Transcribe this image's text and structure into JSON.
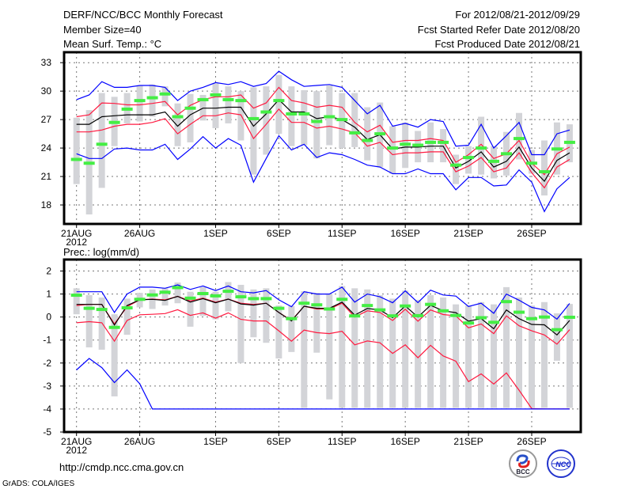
{
  "header": {
    "title": "DERF/NCC/BCC Monthly Forecast",
    "member_size": "Member Size=40",
    "variable": "Mean Surf. Temp.: °C",
    "period": "For 2012/08/21-2012/09/29",
    "refer_date": "Fcst Started Refer Date 2012/08/20",
    "produced_date": "Fcst Produced Date 2012/08/21"
  },
  "footer": {
    "url": "http://cmdp.ncc.cma.gov.cn",
    "credit": "GrADS: COLA/IGES",
    "logos": [
      "BCC",
      "NCC"
    ]
  },
  "colors": {
    "extreme": "#0000ff",
    "spread": "#ff1a40",
    "mean": "#000000",
    "green": "#44ee44",
    "bar": "#d3d4d8"
  },
  "chart_data": [
    {
      "type": "line",
      "title": "Mean Surf. Temp.: °C",
      "ylim": [
        16.0,
        34.1
      ],
      "yticks": [
        18,
        21,
        24,
        27,
        30,
        33
      ],
      "xtick_labels": [
        "21AUG",
        "26AUG",
        "1SEP",
        "6SEP",
        "11SEP",
        "16SEP",
        "21SEP",
        "26SEP"
      ],
      "xtick_index": [
        0,
        5,
        11,
        16,
        21,
        26,
        31,
        36
      ],
      "year_label": "2012",
      "grid": true,
      "n_days": 40,
      "series": [
        {
          "name": "max",
          "color": "#0000ff",
          "values": [
            29.1,
            29.6,
            31.0,
            30.4,
            30.4,
            30.6,
            30.6,
            30.4,
            29.0,
            30.0,
            30.4,
            30.9,
            30.7,
            31.0,
            30.5,
            30.8,
            32.1,
            31.2,
            30.5,
            30.6,
            30.7,
            30.4,
            29.0,
            27.6,
            28.5,
            26.3,
            26.6,
            26.2,
            27.0,
            26.8,
            24.2,
            24.3,
            26.5,
            24.0,
            25.3,
            26.7,
            23.3,
            23.3,
            25.5,
            25.9
          ]
        },
        {
          "name": "upper",
          "color": "#ff1a40",
          "values": [
            27.3,
            27.5,
            28.75,
            28.7,
            28.55,
            28.55,
            28.7,
            28.9,
            27.5,
            28.5,
            29.1,
            29.4,
            29.4,
            29.6,
            28.2,
            28.75,
            30.4,
            29.0,
            28.75,
            28.3,
            28.5,
            28.3,
            26.7,
            25.7,
            26.4,
            24.6,
            24.8,
            24.8,
            25.0,
            24.8,
            22.5,
            23.3,
            24.4,
            22.9,
            23.4,
            24.8,
            22.4,
            21.2,
            23.4,
            24.1
          ]
        },
        {
          "name": "mean",
          "color": "#000000",
          "values": [
            26.5,
            26.5,
            27.3,
            27.4,
            27.5,
            27.5,
            27.5,
            27.8,
            26.3,
            27.5,
            28.2,
            28.2,
            28.3,
            28.3,
            26.3,
            27.6,
            29.1,
            27.8,
            27.8,
            27.1,
            27.3,
            27.0,
            26.2,
            24.9,
            25.4,
            23.9,
            24.1,
            24.1,
            24.2,
            24.2,
            21.9,
            22.6,
            23.6,
            22.0,
            22.6,
            24.1,
            21.9,
            20.5,
            22.7,
            23.5
          ]
        },
        {
          "name": "lower",
          "color": "#ff1a40",
          "values": [
            25.7,
            25.7,
            25.9,
            26.3,
            26.5,
            26.5,
            26.7,
            27.1,
            25.5,
            26.5,
            27.4,
            27.4,
            27.7,
            27.5,
            25.0,
            26.5,
            28.1,
            26.7,
            26.7,
            26.1,
            26.3,
            26.0,
            25.6,
            24.2,
            24.6,
            23.3,
            23.5,
            23.5,
            23.6,
            23.6,
            21.5,
            22.1,
            23.0,
            21.5,
            21.9,
            23.5,
            21.4,
            19.8,
            22.0,
            22.8
          ]
        },
        {
          "name": "min",
          "color": "#0000ff",
          "values": [
            23.4,
            22.9,
            22.9,
            23.9,
            24.0,
            23.8,
            23.8,
            24.4,
            22.8,
            23.9,
            25.2,
            24.0,
            25.0,
            24.3,
            20.4,
            22.9,
            25.3,
            23.8,
            24.4,
            23.0,
            23.5,
            23.3,
            22.8,
            22.2,
            22.0,
            21.3,
            21.3,
            21.8,
            21.3,
            21.3,
            19.6,
            20.9,
            20.9,
            20.0,
            20.1,
            21.7,
            20.4,
            17.3,
            19.7,
            20.9
          ]
        }
      ],
      "markers": [
        22.8,
        22.4,
        24.4,
        26.7,
        28.1,
        29.0,
        29.3,
        29.7,
        27.3,
        28.2,
        29.1,
        29.6,
        29.1,
        29.0,
        27.1,
        27.8,
        29.0,
        27.6,
        27.6,
        26.8,
        27.3,
        27.0,
        25.6,
        24.8,
        25.5,
        24.0,
        24.4,
        24.3,
        24.6,
        24.6,
        22.2,
        23.0,
        24.0,
        22.6,
        23.4,
        25.0,
        22.4,
        21.5,
        23.9,
        24.6
      ],
      "bars_low": [
        20.2,
        17.0,
        19.8,
        24.2,
        26.6,
        26.8,
        27.3,
        28.4,
        24.2,
        24.6,
        26.9,
        26.1,
        26.6,
        24.8,
        21.2,
        23.3,
        25.5,
        24.2,
        24.3,
        22.9,
        24.3,
        24.0,
        24.1,
        22.7,
        22.0,
        21.3,
        21.9,
        22.5,
        22.5,
        22.5,
        20.2,
        21.3,
        21.2,
        20.8,
        21.1,
        22.8,
        21.3,
        19.0,
        21.2,
        22.5
      ],
      "bars_high": [
        27.2,
        28.0,
        29.8,
        29.4,
        29.8,
        30.6,
        30.7,
        30.5,
        28.7,
        29.7,
        29.6,
        30.8,
        30.5,
        30.0,
        30.4,
        30.5,
        31.7,
        30.5,
        30.1,
        30.0,
        30.6,
        29.8,
        29.8,
        28.3,
        28.8,
        26.3,
        26.7,
        25.8,
        26.7,
        26.0,
        23.3,
        24.2,
        27.3,
        24.2,
        25.7,
        27.7,
        23.8,
        24.8,
        26.7,
        26.5
      ]
    },
    {
      "type": "line",
      "title": "Prec.: log(mm/d)",
      "ylim": [
        -5,
        2.5
      ],
      "yticks": [
        -5,
        -4,
        -3,
        -2,
        -1,
        0,
        1,
        2
      ],
      "xtick_labels": [
        "21AUG",
        "26AUG",
        "1SEP",
        "6SEP",
        "11SEP",
        "16SEP",
        "21SEP",
        "26SEP"
      ],
      "xtick_index": [
        0,
        5,
        11,
        16,
        21,
        26,
        31,
        36
      ],
      "year_label": "2012",
      "grid": true,
      "n_days": 40,
      "series": [
        {
          "name": "max",
          "color": "#0000ff",
          "values": [
            1.1,
            1.1,
            1.1,
            0.2,
            1.0,
            1.3,
            1.3,
            1.25,
            1.4,
            1.2,
            1.35,
            1.15,
            1.35,
            1.1,
            1.05,
            1.15,
            0.75,
            0.45,
            1.1,
            1.0,
            1.0,
            1.3,
            0.65,
            1.0,
            0.88,
            0.62,
            1.14,
            0.63,
            1.17,
            0.96,
            0.91,
            0.46,
            0.6,
            0.16,
            1.0,
            0.73,
            0.42,
            0.31,
            -0.09,
            0.59
          ]
        },
        {
          "name": "upper",
          "color": "#ff1a40",
          "values": [
            0.5,
            0.55,
            0.55,
            -0.3,
            0.45,
            0.75,
            0.78,
            0.75,
            0.9,
            0.7,
            0.82,
            0.65,
            0.78,
            0.6,
            0.55,
            0.6,
            0.2,
            -0.15,
            0.47,
            0.35,
            0.35,
            0.6,
            0.0,
            0.27,
            0.2,
            -0.15,
            0.34,
            -0.18,
            0.31,
            0.11,
            0.05,
            -0.47,
            -0.3,
            -0.72,
            0.05,
            -0.38,
            -0.6,
            -0.78,
            -1.18,
            -0.55
          ]
        },
        {
          "name": "mean",
          "color": "#000000",
          "values": [
            0.55,
            0.55,
            0.55,
            -0.35,
            0.5,
            0.75,
            0.77,
            0.72,
            0.9,
            0.65,
            0.8,
            0.62,
            0.78,
            0.57,
            0.52,
            0.6,
            0.2,
            -0.17,
            0.47,
            0.38,
            0.38,
            0.65,
            0.08,
            0.37,
            0.31,
            -0.03,
            0.48,
            0.0,
            0.51,
            0.27,
            0.19,
            -0.18,
            -0.07,
            -0.51,
            0.31,
            -0.07,
            -0.32,
            -0.34,
            -0.78,
            -0.15
          ]
        },
        {
          "name": "lower",
          "color": "#ff1a40",
          "values": [
            -0.25,
            -0.2,
            -0.25,
            -1.05,
            -0.15,
            0.1,
            0.12,
            0.15,
            0.32,
            0.07,
            0.18,
            -0.05,
            0.18,
            -0.1,
            -0.17,
            -0.17,
            -0.6,
            -1.05,
            -0.57,
            -0.68,
            -0.72,
            -0.62,
            -1.21,
            -1.04,
            -1.12,
            -1.58,
            -1.21,
            -1.77,
            -1.23,
            -1.69,
            -1.92,
            -2.81,
            -2.47,
            -2.91,
            -2.43,
            -3.18,
            -3.98,
            -4.0,
            -4.0,
            -4.0
          ]
        },
        {
          "name": "min",
          "color": "#0000ff",
          "values": [
            -2.3,
            -1.8,
            -2.2,
            -2.85,
            -2.3,
            -2.9,
            -4.0,
            -4.0,
            -4.0,
            -4.0,
            -4.0,
            -4.0,
            -4.0,
            -4.0,
            -4.0,
            -4.0,
            -4.0,
            -4.0,
            -4.0,
            -4.0,
            -4.0,
            -4.0,
            -4.0,
            -4.0,
            -4.0,
            -4.0,
            -4.0,
            -4.0,
            -4.0,
            -4.0,
            -4.0,
            -4.0,
            -4.0,
            -4.0,
            -4.0,
            -4.0,
            -4.0,
            -4.0,
            -4.0,
            -4.0
          ]
        }
      ],
      "markers": [
        0.95,
        0.38,
        0.33,
        -0.45,
        0.4,
        0.77,
        0.96,
        1.08,
        1.28,
        0.82,
        1.02,
        0.92,
        1.12,
        0.88,
        0.8,
        0.8,
        0.38,
        -0.07,
        0.6,
        0.53,
        0.35,
        0.77,
        0.05,
        0.5,
        0.31,
        0.05,
        0.48,
        0.06,
        0.55,
        0.27,
        0.07,
        -0.26,
        -0.03,
        -0.23,
        0.67,
        0.21,
        -0.07,
        0.0,
        -0.55,
        -0.01
      ],
      "bars_low": [
        0.12,
        -1.32,
        -1.42,
        -3.45,
        -0.77,
        0.42,
        0.35,
        0.5,
        0.6,
        -0.42,
        0.05,
        -0.1,
        0.25,
        -2.0,
        -0.88,
        -1.12,
        -1.8,
        -1.52,
        -3.95,
        -1.55,
        -3.58,
        -3.95,
        -3.95,
        -3.95,
        -3.95,
        -3.95,
        -3.95,
        -3.95,
        -3.95,
        -3.95,
        -3.95,
        -3.95,
        -3.95,
        -3.95,
        -3.95,
        -3.95,
        -3.95,
        -3.95,
        -1.9,
        -3.95
      ],
      "bars_high": [
        1.25,
        0.95,
        0.85,
        0.12,
        0.8,
        1.05,
        1.2,
        1.25,
        1.5,
        1.1,
        1.3,
        1.1,
        1.52,
        1.4,
        1.2,
        1.25,
        0.5,
        0.48,
        1.12,
        1.05,
        1.0,
        1.35,
        1.25,
        1.2,
        0.95,
        0.8,
        1.15,
        0.75,
        0.95,
        0.85,
        0.55,
        0.5,
        0.65,
        0.55,
        1.3,
        0.85,
        0.5,
        0.65,
        0.16,
        0.57
      ]
    }
  ]
}
